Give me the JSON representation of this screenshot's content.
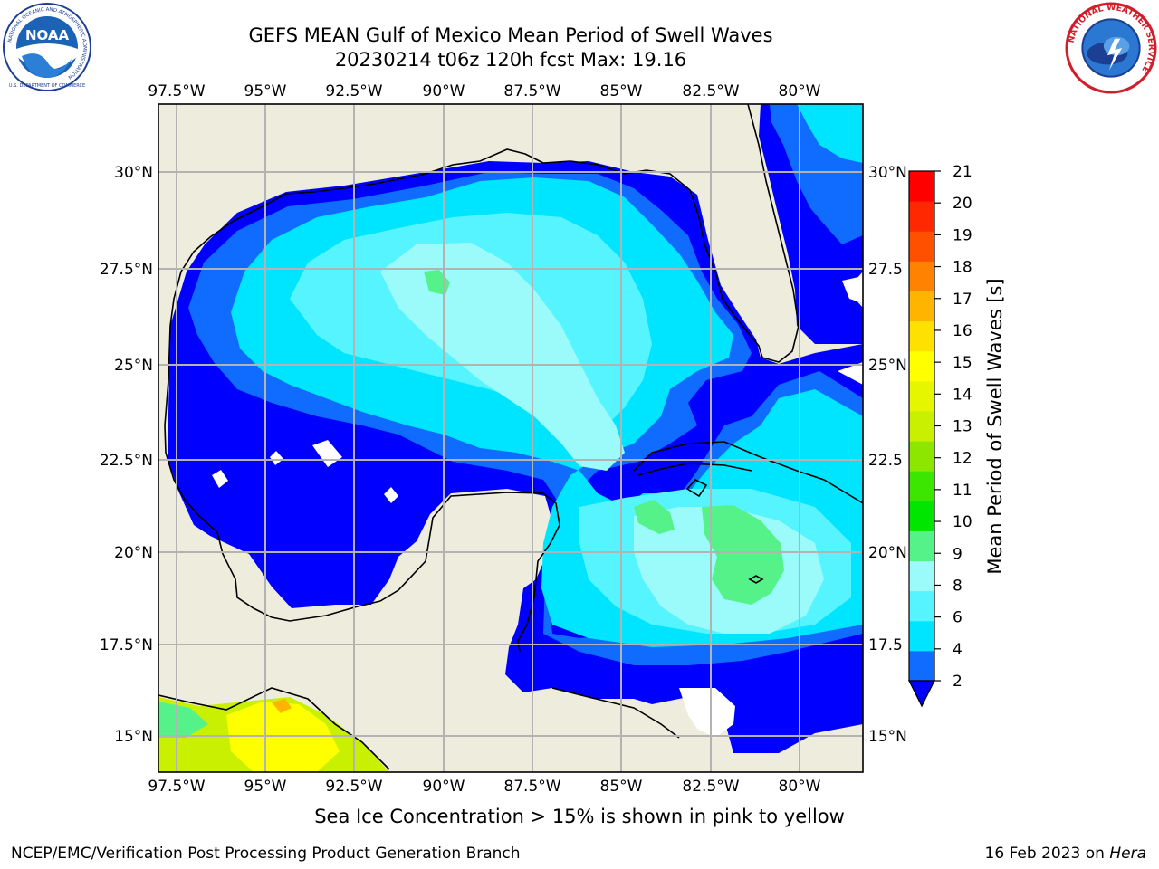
{
  "header": {
    "title_line1": "GEFS MEAN Gulf of Mexico Mean Period of Swell Waves",
    "title_line2": "20230214 t06z 120h fcst   Max: 19.16"
  },
  "logos": {
    "noaa_text": "NOAA",
    "noaa_ring_text": "NATIONAL OCEANIC AND ATMOSPHERIC ADMINISTRATION",
    "noaa_ring_bottom": "U.S. DEPARTMENT OF COMMERCE",
    "nws_ring_text": "NATIONAL WEATHER SERVICE"
  },
  "axes": {
    "lon_labels": [
      "97.5°W",
      "95°W",
      "92.5°W",
      "90°W",
      "87.5°W",
      "85°W",
      "82.5°W",
      "80°W"
    ],
    "lat_labels_left": [
      "30°N",
      "27.5°N",
      "25°N",
      "22.5°N",
      "20°N",
      "17.5°N",
      "15°N"
    ],
    "lat_labels_right": [
      "30°N",
      "27.5",
      "25°N",
      "22.5",
      "20°N",
      "17.5",
      "15°N"
    ]
  },
  "colorbar": {
    "label": "Mean Period of Swell Waves [s]",
    "ticks": [
      "2",
      "4",
      "6",
      "8",
      "9",
      "10",
      "11",
      "12",
      "13",
      "14",
      "15",
      "16",
      "17",
      "18",
      "19",
      "20",
      "21"
    ],
    "colors": [
      "#0f6cff",
      "#00e5ff",
      "#56f4ff",
      "#9bfafa",
      "#55f28a",
      "#00e600",
      "#3de600",
      "#8ce600",
      "#c8f000",
      "#e6f500",
      "#ffff00",
      "#ffe100",
      "#ffb400",
      "#ff8200",
      "#ff5000",
      "#ff2800",
      "#ff0000"
    ],
    "underflow_color": "#0000ff"
  },
  "colors": {
    "land": "#eeecdc",
    "background": "#ffffff",
    "gridline": "#b3b3b3",
    "period_2_4": "#0000ff"
  },
  "note": "Sea Ice Concentration > 15% is shown in pink to yellow",
  "footer": {
    "left": "NCEP/EMC/Verification Post Processing Product Generation Branch",
    "right_prefix": "16 Feb 2023 on ",
    "right_host": "Hera"
  }
}
